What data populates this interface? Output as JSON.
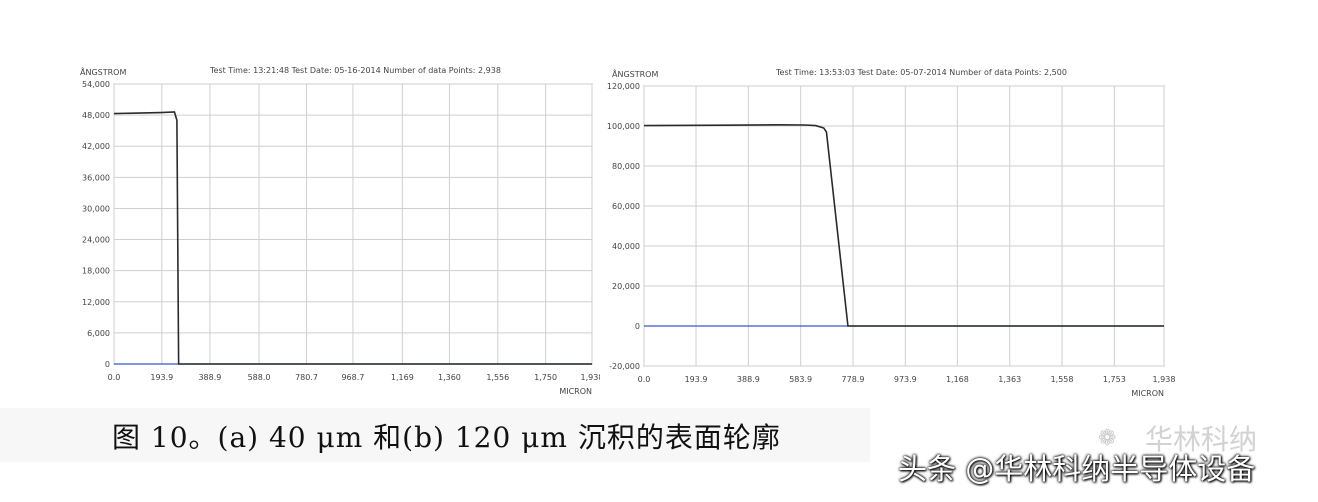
{
  "chart_data": [
    {
      "type": "line",
      "panel": "a",
      "header_text": "Test Time: 13:21:48  Test Date: 05-16-2014  Number of data Points: 2,938",
      "y_unit_label": "ÅNGSTROM",
      "x_unit_label": "MICRON",
      "y_ticks": [
        "54,000",
        "48,000",
        "42,000",
        "36,000",
        "30,000",
        "24,000",
        "18,000",
        "12,000",
        "6,000",
        "0"
      ],
      "y_tick_values": [
        54000,
        48000,
        42000,
        36000,
        30000,
        24000,
        18000,
        12000,
        6000,
        0
      ],
      "x_ticks": [
        "0.0",
        "193.9",
        "388.9",
        "588.0",
        "780.7",
        "968.7",
        "1,169",
        "1,360",
        "1,556",
        "1,750",
        "1,938"
      ],
      "x_tick_values": [
        0,
        193.9,
        388.9,
        588.0,
        780.7,
        968.7,
        1169,
        1360,
        1556,
        1750,
        1938
      ],
      "xlim": [
        0,
        1938
      ],
      "ylim": [
        0,
        54000
      ],
      "baseline": 0,
      "grid": true,
      "series": [
        {
          "color": "#2b2b2b",
          "x": [
            0,
            190,
            245,
            255,
            262,
            1938
          ],
          "y": [
            48300,
            48500,
            48600,
            47000,
            0,
            0
          ]
        }
      ]
    },
    {
      "type": "line",
      "panel": "b",
      "header_text": "Test Time: 13:53:03  Test Date: 05-07-2014  Number of data Points: 2,500",
      "y_unit_label": "ÅNGSTROM",
      "x_unit_label": "MICRON",
      "y_ticks": [
        "120,000",
        "100,000",
        "80,000",
        "60,000",
        "40,000",
        "20,000",
        "0",
        "-20,000"
      ],
      "y_tick_values": [
        120000,
        100000,
        80000,
        60000,
        40000,
        20000,
        0,
        -20000
      ],
      "x_ticks": [
        "0.0",
        "193.9",
        "388.9",
        "583.9",
        "778.9",
        "973.9",
        "1,168",
        "1,363",
        "1,558",
        "1,753",
        "1,938"
      ],
      "x_tick_values": [
        0,
        193.9,
        388.9,
        583.9,
        778.9,
        973.9,
        1168,
        1363,
        1558,
        1753,
        1938
      ],
      "xlim": [
        0,
        1938
      ],
      "ylim": [
        -20000,
        120000
      ],
      "baseline": 0,
      "grid": true,
      "series": [
        {
          "color": "#2b2b2b",
          "x": [
            0,
            300,
            500,
            600,
            640,
            670,
            680,
            760,
            770,
            1938
          ],
          "y": [
            100200,
            100400,
            100600,
            100500,
            100200,
            99000,
            97000,
            0,
            0,
            0
          ]
        }
      ]
    }
  ],
  "caption": "图 10。(a) 40 μm 和(b) 120 μm 沉积的表面轮廓",
  "watermark_bg": "华林科纳",
  "watermark": "头条 @华林科纳半导体设备"
}
